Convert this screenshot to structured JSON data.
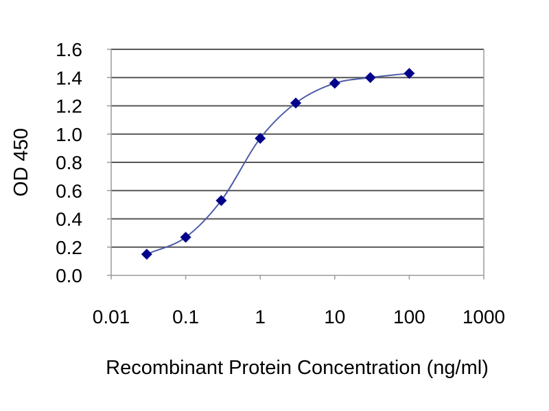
{
  "chart_data": {
    "type": "scatter",
    "title": "",
    "xlabel": "Recombinant Protein Concentration (ng/ml)",
    "ylabel": "OD 450",
    "x_scale": "log",
    "xlim": [
      0.01,
      1000
    ],
    "ylim": [
      0.0,
      1.6
    ],
    "x_ticks": [
      "0.01",
      "0.1",
      "1",
      "10",
      "100",
      "1000"
    ],
    "y_ticks": [
      "0.0",
      "0.2",
      "0.4",
      "0.6",
      "0.8",
      "1.0",
      "1.2",
      "1.4",
      "1.6"
    ],
    "grid": "horizontal",
    "legend": "none",
    "series": [
      {
        "x": [
          0.03,
          0.1,
          0.3,
          1,
          3,
          10,
          30,
          100
        ],
        "y": [
          0.15,
          0.27,
          0.53,
          0.97,
          1.22,
          1.36,
          1.4,
          1.43
        ],
        "fit": "sigmoid",
        "marker": "diamond",
        "color": "#00008b",
        "line_color": "#4b5aa6"
      }
    ]
  }
}
